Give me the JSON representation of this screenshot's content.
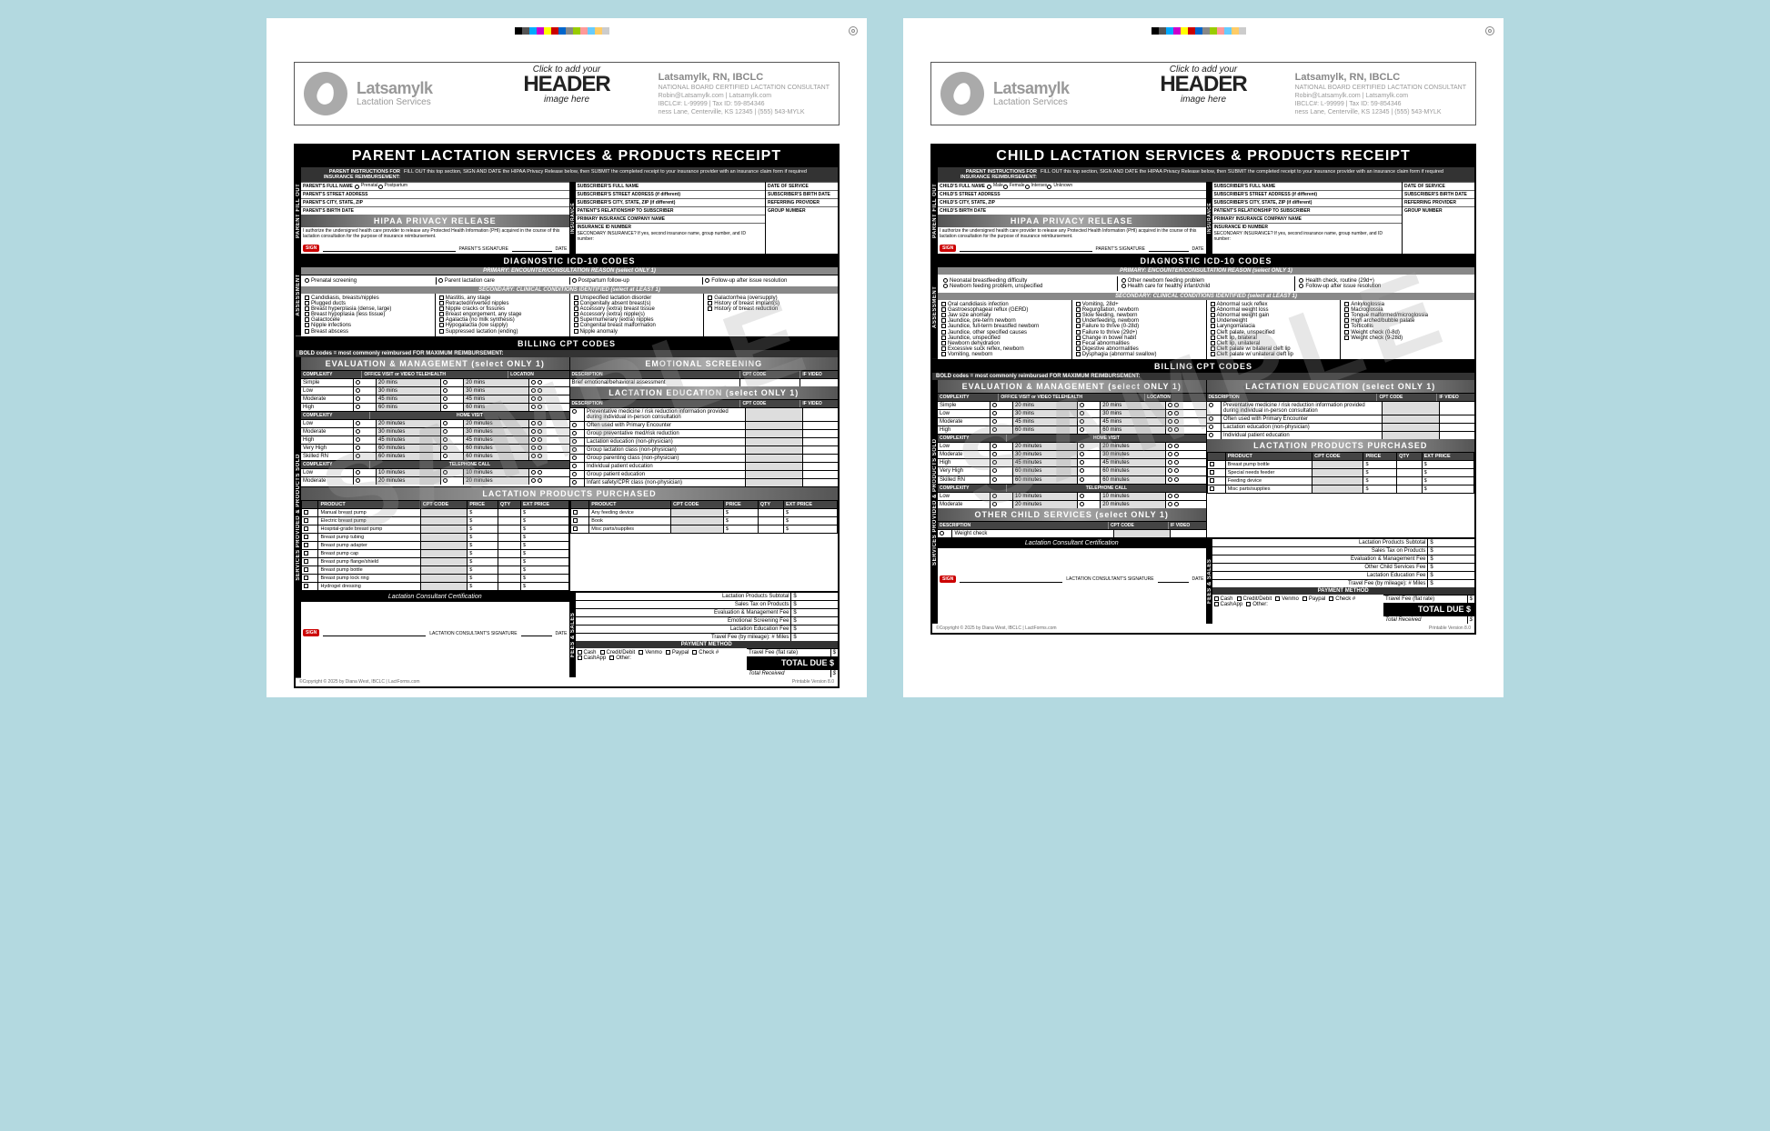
{
  "color_bars": [
    "#000",
    "#555",
    "#0af",
    "#c0c",
    "#ff0",
    "#c00",
    "#06c",
    "#888",
    "#9c0",
    "#f99",
    "#6cf",
    "#fc6",
    "#ccc"
  ],
  "header": {
    "brand": "Latsamylk",
    "tagline": "Lactation Services",
    "overlay_small1": "Click to add your",
    "overlay_big": "HEADER",
    "overlay_small2": "image here",
    "name": "Latsamylk, RN, IBCLC",
    "cred": "NATIONAL BOARD CERTIFIED LACTATION CONSULTANT",
    "email": "Robin@Latsamylk.com | Latsamylk.com",
    "ids": "IBCLC#: L-99999 | Tax ID: 59-854346",
    "addr": "ness Lane, Centerville, KS 12345 | (555) 543-MYLK"
  },
  "common": {
    "instr_label": "PARENT INSTRUCTIONS FOR INSURANCE REIMBURSEMENT:",
    "instr_text": "FILL OUT this top section, SIGN AND DATE the HIPAA Privacy Release below, then SUBMIT the completed receipt to your insurance provider with an insurance claim form if required",
    "hipaa": "HIPAA PRIVACY RELEASE",
    "hipaa_text": "I authorize the undersigned health care provider to release any Protected Health Information (PHI) acquired in the course of this lactation consultation for the purpose of insurance reimbursement.",
    "icd_title": "DIAGNOSTIC ICD-10 CODES",
    "primary_band": "PRIMARY:  ENCOUNTER/CONSULTATION REASON  (select ONLY 1)",
    "secondary_band": "SECONDARY:  CLINICAL CONDITIONS IDENTIFIED  (select at LEAST 1)",
    "cpt_title": "BILLING CPT CODES",
    "cpt_note": "BOLD codes = most commonly reimbursed     FOR MAXIMUM REIMBURSEMENT:",
    "eval_band": "EVALUATION & MANAGEMENT  (select ONLY 1)",
    "lact_ed_band": "LACTATION EDUCATION  (select ONLY 1)",
    "products_band": "LACTATION PRODUCTS PURCHASED",
    "cert": "Lactation Consultant Certification",
    "pay_method": "PAYMENT METHOD",
    "total_due": "TOTAL DUE",
    "total_rec": "Total Received",
    "copyright": "Copyright © 2025 by Diana West, IBCLC | LactForms.com",
    "version": "Printable Version 8.0",
    "sidebars": {
      "parent": "PARENT FILL OUT",
      "assess": "ASSESSMENT",
      "services": "SERVICES PROVIDED & PRODUCTS SOLD",
      "fees": "FEES & SALES"
    },
    "parent_fields": [
      "PARENT'S FULL NAME",
      "PARENT'S STREET ADDRESS",
      "PARENT'S CITY, STATE, ZIP",
      "PARENT'S BIRTH DATE"
    ],
    "child_fields": [
      "CHILD'S FULL NAME",
      "CHILD'S STREET ADDRESS",
      "CHILD'S CITY, STATE, ZIP",
      "CHILD'S BIRTH DATE"
    ],
    "ins_fields": [
      "SUBSCRIBER'S FULL NAME",
      "SUBSCRIBER'S STREET ADDRESS (if different)",
      "SUBSCRIBER'S CITY, STATE, ZIP (if different)",
      "PATIENT'S RELATIONSHIP TO SUBSCRIBER",
      "PRIMARY INSURANCE COMPANY NAME",
      "INSURANCE ID NUMBER"
    ],
    "date_fields": [
      "DATE OF SERVICE",
      "SUBSCRIBER'S BIRTH DATE",
      "REFERRING PROVIDER",
      "GROUP NUMBER"
    ],
    "complexity_levels": [
      "Simple",
      "Low",
      "Moderate",
      "High"
    ],
    "home_levels": [
      "Low",
      "Moderate",
      "High",
      "Very High",
      "Skilled RN"
    ],
    "tel_levels": [
      "Low",
      "Moderate"
    ],
    "home_visit": "HOME VISIT",
    "tel_call": "TELEPHONE CALL",
    "office_visit": "OFFICE VISIT or VIDEO TELEHEALTH",
    "emo_band": "EMOTIONAL SCREENING",
    "payment_opts": [
      "Cash",
      "Credit/Debit",
      "Venmo",
      "Paypal",
      "Check #",
      "CashApp",
      "Other:"
    ],
    "fees": [
      "Lactation Products Subtotal",
      "Sales Tax on Products",
      "Evaluation & Management Fee",
      "Emotional Screening Fee",
      "Lactation Education Fee",
      "Travel Fee (by mileage): # Miles"
    ],
    "fees_child": [
      "Lactation Products Subtotal",
      "Sales Tax on Products",
      "Evaluation & Management Fee",
      "Other Child Services Fee",
      "Lactation Education Fee",
      "Travel Fee (by mileage): # Miles"
    ]
  },
  "parent": {
    "title": "PARENT LACTATION SERVICES & PRODUCTS RECEIPT",
    "gender_opts": [
      "Prenatal",
      "Postpartum"
    ],
    "primary_opts": [
      "Prenatal screening",
      "Parent lactation care",
      "Postpartum follow-up",
      "Follow-up after issue resolution"
    ],
    "conditions": [
      [
        "Candidiasis, breasts/nipples",
        "Plugged ducts",
        "Breast hyperplasia (dense, large)",
        "Breast hypoplasia (less tissue)",
        "Galactocele",
        "Nipple infections",
        "Breast abscess"
      ],
      [
        "Mastitis, any stage",
        "Retracted/inverted nipples",
        "Nipple cracks or fissures",
        "Breast engorgement, any stage",
        "Agalactia (no milk synthesis)",
        "Hypogalactia (low supply)",
        "Suppressed lactation (ending)"
      ],
      [
        "Unspecified lactation disorder",
        "Congenitally absent breast(s)",
        "Accessory (extra) breast tissue",
        "Accessory (extra) nipple(s)",
        "Supernumerary (extra) nipples",
        "Congenital breast malformation",
        "Nipple anomaly"
      ],
      [
        "Galactorrhea (oversupply)",
        "History of breast implant(s)",
        "History of breast reduction"
      ]
    ],
    "ed_items": [
      "Preventative medicine / risk reduction information provided during individual in-person consultation",
      "Often used with Primary Encounter",
      "Group preventative med/risk reduction",
      "Lactation education (non-physician)",
      "Group lactation class (non-physician)",
      "Group parenting class (non-physician)",
      "Individual patient education",
      "Group patient education",
      "Infant safety/CPR class (non-physician)"
    ],
    "products_left": [
      "Manual breast pump",
      "Electric breast pump",
      "Hospital-grade breast pump",
      "Breast pump tubing",
      "Breast pump adapter",
      "Breast pump cap",
      "Breast pump flange/shield",
      "Breast pump bottle",
      "Breast pump lock ring",
      "Hydrogel dressing"
    ],
    "products_right": [
      "Any feeding device",
      "Book",
      "Misc parts/supplies"
    ]
  },
  "child": {
    "title": "CHILD LACTATION SERVICES & PRODUCTS RECEIPT",
    "gender_opts": [
      "Male",
      "Female",
      "Intersex",
      "Unknown"
    ],
    "primary_opts": [
      "Neonatal breastfeeding difficulty",
      "Newborn feeding problem, unspecified",
      "Other newborn feeding problem",
      "Health care for healthy infant/child",
      "Health check, routine (29d+)",
      "Follow-up after issue resolution"
    ],
    "conditions": [
      [
        "Oral candidiasis infection",
        "Gastroesophageal reflux (GERD)",
        "Jaw size anomaly",
        "Jaundice, pre-term newborn",
        "Jaundice, full-term breastfed newborn",
        "Jaundice, other specified causes",
        "Jaundice, unspecified",
        "Newborn dehydration",
        "Excessive suck reflex, newborn",
        "Vomiting, newborn"
      ],
      [
        "Vomiting, 28d+",
        "Regurgitation, newborn",
        "Slow feeding, newborn",
        "Underfeeding, newborn",
        "Failure to thrive (0-28d)",
        "Failure to thrive (29d+)",
        "Change in bowel habit",
        "Fecal abnormalities",
        "Digestive abnormalities",
        "Dysphagia (abnormal swallow)"
      ],
      [
        "Abnormal suck reflex",
        "Abnormal weight loss",
        "Abnormal weight gain",
        "Underweight",
        "Laryngomalacia",
        "Cleft palate, unspecified",
        "Cleft lip, bilateral",
        "Cleft lip, unilateral",
        "Cleft palate w/ bilateral cleft lip",
        "Cleft palate w/ unilateral cleft lip"
      ],
      [
        "Ankyloglossia",
        "Macroglossia",
        "Tongue malformed/microglossia",
        "High arched/bubble palate",
        "Torticollis",
        "Weight check (0-8d)",
        "Weight check (9-28d)"
      ]
    ],
    "ed_items": [
      "Preventative medicine / risk reduction information provided during individual in-person consultation",
      "Often used with Primary Encounter",
      "Lactation education (non-physician)",
      "Individual patient education"
    ],
    "products": [
      "Breast pump bottle",
      "Special needs feeder",
      "Feeding device",
      "Misc parts/supplies"
    ],
    "other_band": "OTHER CHILD SERVICES  (select ONLY 1)",
    "other_items": [
      "Weight check"
    ]
  }
}
